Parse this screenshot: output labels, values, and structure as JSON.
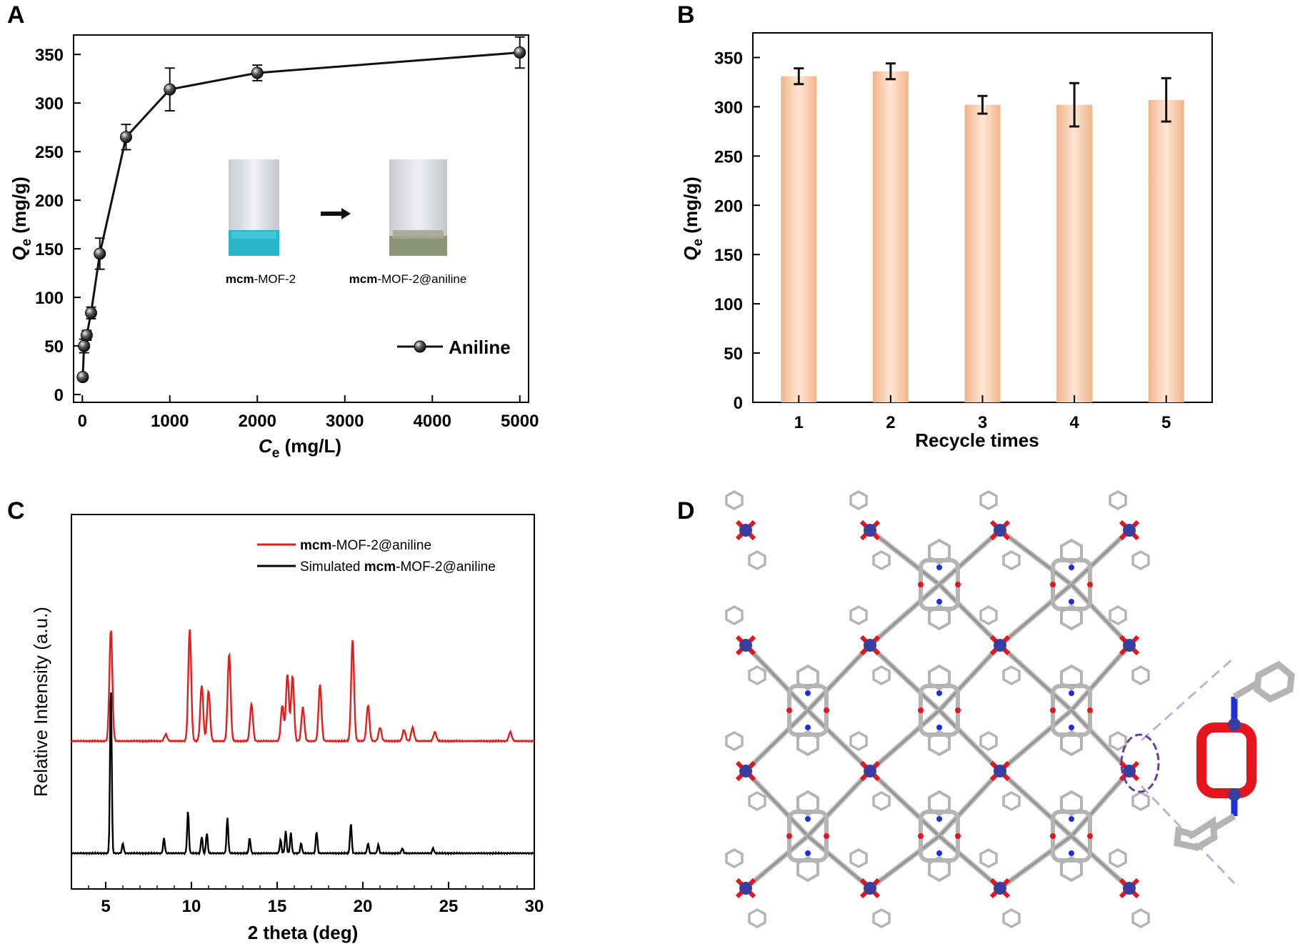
{
  "colors": {
    "axis": "#000000",
    "panelA_line": "#111111",
    "bar_fill_edge": "#f1b489",
    "bar_fill_mid": "#fde6d4",
    "pxrd_exp": "#e41c1c",
    "pxrd_sim": "#000000",
    "crystal_carbon": "#b4b4b4",
    "crystal_oxygen": "#e8141c",
    "crystal_nitrogen": "#1c2ee0",
    "crystal_metal": "#3a3e9e",
    "highlight_ellipse": "#6a3d9a"
  },
  "panels": {
    "A": {
      "label": "A",
      "legend_label": "Aniline",
      "inset_labels": [
        "mcm-MOF-2",
        "mcm-MOF-2@aniline"
      ],
      "inset_label_bold": "mcm",
      "inset_label_rest": [
        "-MOF-2",
        "-MOF-2@aniline"
      ],
      "xlabel_var": "C",
      "xlabel_sub": "e",
      "xlabel_unit": " (mg/L)",
      "ylabel_var": "Q",
      "ylabel_sub": "e",
      "ylabel_unit": " (mg/g)"
    },
    "B": {
      "label": "B",
      "xlabel": "Recycle times",
      "ylabel_var": "Q",
      "ylabel_sub": "e",
      "ylabel_unit": " (mg/g)"
    },
    "C": {
      "label": "C",
      "xlabel": "2 theta (deg)",
      "ylabel": "Relative Intensity (a.u.)",
      "legend": [
        {
          "bold": "mcm",
          "rest": "-MOF-2@aniline",
          "prefix": ""
        },
        {
          "bold": "mcm",
          "rest": "-MOF-2@aniline",
          "prefix": "Simulated "
        }
      ]
    },
    "D": {
      "label": "D"
    }
  },
  "chart_data": [
    {
      "panel": "A",
      "type": "line",
      "series": [
        {
          "name": "Aniline",
          "x": [
            5,
            20,
            50,
            100,
            200,
            500,
            1000,
            2000,
            5000
          ],
          "y": [
            18,
            50,
            61,
            84,
            145,
            265,
            314,
            331,
            352
          ],
          "yerr": [
            3,
            7,
            5,
            6,
            16,
            13,
            22,
            8,
            16
          ]
        }
      ],
      "xlim": [
        -100,
        5100
      ],
      "ylim": [
        -8,
        370
      ],
      "xticks": [
        0,
        1000,
        2000,
        3000,
        4000,
        5000
      ],
      "yticks": [
        0,
        50,
        100,
        150,
        200,
        250,
        300,
        350
      ],
      "legend_position": "bottom-right"
    },
    {
      "panel": "B",
      "type": "bar",
      "categories": [
        "1",
        "2",
        "3",
        "4",
        "5"
      ],
      "values": [
        331,
        336,
        302,
        302,
        307
      ],
      "yerr": [
        8,
        8,
        9,
        22,
        22
      ],
      "ylim": [
        0,
        375
      ],
      "yticks": [
        0,
        50,
        100,
        150,
        200,
        250,
        300,
        350
      ]
    },
    {
      "panel": "C",
      "type": "line",
      "xlim": [
        3,
        30
      ],
      "xticks": [
        5,
        10,
        15,
        20,
        25,
        30
      ],
      "yticks_shown": false,
      "series": [
        {
          "name": "mcm-MOF-2@aniline",
          "peaks": [
            [
              5.3,
              1.0
            ],
            [
              8.5,
              0.06
            ],
            [
              9.9,
              1.0
            ],
            [
              10.6,
              0.5
            ],
            [
              11.0,
              0.45
            ],
            [
              12.2,
              0.78
            ],
            [
              13.5,
              0.33
            ],
            [
              15.3,
              0.32
            ],
            [
              15.6,
              0.6
            ],
            [
              15.9,
              0.58
            ],
            [
              16.5,
              0.3
            ],
            [
              17.5,
              0.5
            ],
            [
              19.4,
              0.9
            ],
            [
              20.3,
              0.32
            ],
            [
              21.0,
              0.12
            ],
            [
              22.4,
              0.1
            ],
            [
              22.9,
              0.12
            ],
            [
              24.2,
              0.08
            ],
            [
              28.6,
              0.08
            ]
          ]
        },
        {
          "name": "Simulated mcm-MOF-2@aniline",
          "peaks": [
            [
              5.3,
              1.0
            ],
            [
              6.0,
              0.06
            ],
            [
              8.4,
              0.09
            ],
            [
              9.8,
              0.25
            ],
            [
              10.6,
              0.1
            ],
            [
              10.9,
              0.12
            ],
            [
              12.1,
              0.21
            ],
            [
              13.4,
              0.09
            ],
            [
              15.2,
              0.08
            ],
            [
              15.5,
              0.13
            ],
            [
              15.8,
              0.12
            ],
            [
              16.4,
              0.06
            ],
            [
              17.3,
              0.13
            ],
            [
              19.3,
              0.18
            ],
            [
              20.3,
              0.06
            ],
            [
              20.9,
              0.05
            ],
            [
              22.3,
              0.03
            ],
            [
              24.1,
              0.03
            ]
          ]
        }
      ]
    }
  ]
}
